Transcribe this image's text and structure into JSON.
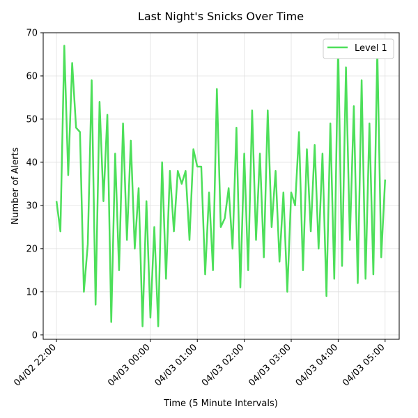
{
  "chart_data": {
    "type": "line",
    "title": "Last Night's Snicks Over Time",
    "xlabel": "Time (5 Minute Intervals)",
    "ylabel": "Number of Alerts",
    "xlim": [
      "04/02 21:43",
      "04/03 05:18"
    ],
    "ylim": [
      -1,
      70
    ],
    "x_ticks": [
      "04/02 22:00",
      "04/03 00:00",
      "04/03 01:00",
      "04/03 02:00",
      "04/03 03:00",
      "04/03 04:00",
      "04/03 05:00"
    ],
    "y_ticks": [
      0,
      10,
      20,
      30,
      40,
      50,
      60,
      70
    ],
    "grid": true,
    "legend_position": "upper right",
    "line_color": "#4ddf5a",
    "series": [
      {
        "name": "Level 1",
        "points": [
          [
            "04/02 22:00",
            31
          ],
          [
            "04/02 22:05",
            24
          ],
          [
            "04/02 22:10",
            67
          ],
          [
            "04/02 22:15",
            37
          ],
          [
            "04/02 22:20",
            63
          ],
          [
            "04/02 22:25",
            48
          ],
          [
            "04/02 22:30",
            47
          ],
          [
            "04/02 22:35",
            10
          ],
          [
            "04/02 22:40",
            21
          ],
          [
            "04/02 22:45",
            59
          ],
          [
            "04/02 22:50",
            7
          ],
          [
            "04/02 22:55",
            54
          ],
          [
            "04/02 23:00",
            31
          ],
          [
            "04/02 23:05",
            51
          ],
          [
            "04/02 23:10",
            3
          ],
          [
            "04/02 23:15",
            42
          ],
          [
            "04/02 23:20",
            15
          ],
          [
            "04/02 23:25",
            49
          ],
          [
            "04/02 23:30",
            22
          ],
          [
            "04/02 23:35",
            45
          ],
          [
            "04/02 23:40",
            20
          ],
          [
            "04/02 23:45",
            34
          ],
          [
            "04/02 23:50",
            2
          ],
          [
            "04/02 23:55",
            31
          ],
          [
            "04/03 00:00",
            4
          ],
          [
            "04/03 00:05",
            25
          ],
          [
            "04/03 00:10",
            2
          ],
          [
            "04/03 00:15",
            40
          ],
          [
            "04/03 00:20",
            13
          ],
          [
            "04/03 00:25",
            38
          ],
          [
            "04/03 00:30",
            24
          ],
          [
            "04/03 00:35",
            38
          ],
          [
            "04/03 00:40",
            35
          ],
          [
            "04/03 00:45",
            38
          ],
          [
            "04/03 00:50",
            22
          ],
          [
            "04/03 00:55",
            43
          ],
          [
            "04/03 01:00",
            39
          ],
          [
            "04/03 01:05",
            39
          ],
          [
            "04/03 01:10",
            14
          ],
          [
            "04/03 01:15",
            33
          ],
          [
            "04/03 01:20",
            15
          ],
          [
            "04/03 01:25",
            57
          ],
          [
            "04/03 01:30",
            25
          ],
          [
            "04/03 01:35",
            27
          ],
          [
            "04/03 01:40",
            34
          ],
          [
            "04/03 01:45",
            20
          ],
          [
            "04/03 01:50",
            48
          ],
          [
            "04/03 01:55",
            11
          ],
          [
            "04/03 02:00",
            42
          ],
          [
            "04/03 02:05",
            15
          ],
          [
            "04/03 02:10",
            52
          ],
          [
            "04/03 02:15",
            22
          ],
          [
            "04/03 02:20",
            42
          ],
          [
            "04/03 02:25",
            18
          ],
          [
            "04/03 02:30",
            52
          ],
          [
            "04/03 02:35",
            25
          ],
          [
            "04/03 02:40",
            38
          ],
          [
            "04/03 02:45",
            17
          ],
          [
            "04/03 02:50",
            33
          ],
          [
            "04/03 02:55",
            10
          ],
          [
            "04/03 03:00",
            33
          ],
          [
            "04/03 03:05",
            30
          ],
          [
            "04/03 03:10",
            47
          ],
          [
            "04/03 03:15",
            15
          ],
          [
            "04/03 03:20",
            43
          ],
          [
            "04/03 03:25",
            24
          ],
          [
            "04/03 03:30",
            44
          ],
          [
            "04/03 03:35",
            20
          ],
          [
            "04/03 03:40",
            42
          ],
          [
            "04/03 03:45",
            9
          ],
          [
            "04/03 03:50",
            49
          ],
          [
            "04/03 03:55",
            13
          ],
          [
            "04/03 04:00",
            67
          ],
          [
            "04/03 04:05",
            16
          ],
          [
            "04/03 04:10",
            62
          ],
          [
            "04/03 04:15",
            22
          ],
          [
            "04/03 04:20",
            53
          ],
          [
            "04/03 04:25",
            12
          ],
          [
            "04/03 04:30",
            59
          ],
          [
            "04/03 04:35",
            13
          ],
          [
            "04/03 04:40",
            49
          ],
          [
            "04/03 04:45",
            14
          ],
          [
            "04/03 04:50",
            66
          ],
          [
            "04/03 04:55",
            18
          ],
          [
            "04/03 05:00",
            36
          ]
        ]
      }
    ]
  }
}
